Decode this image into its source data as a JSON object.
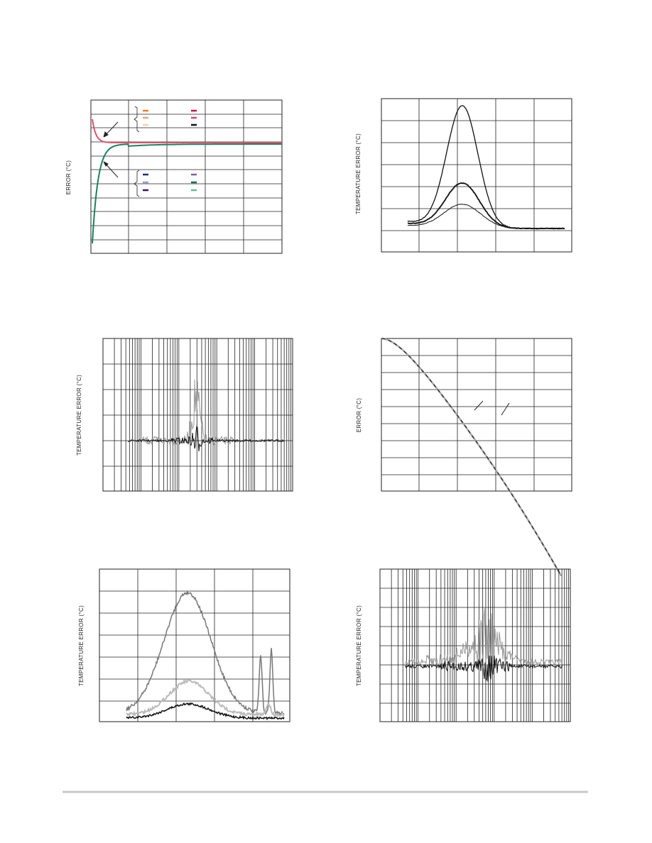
{
  "charts": [
    {
      "y_label": "ERROR (°C)"
    },
    {
      "y_label": "TEMPERATURE ERROR (°C)"
    },
    {
      "y_label": "TEMPERATURE ERROR (°C)"
    },
    {
      "y_label": "ERROR (°C)"
    },
    {
      "y_label": "TEMPERATURE ERROR (°C)"
    },
    {
      "y_label": "TEMPERATURE ERROR (°C)"
    }
  ]
}
